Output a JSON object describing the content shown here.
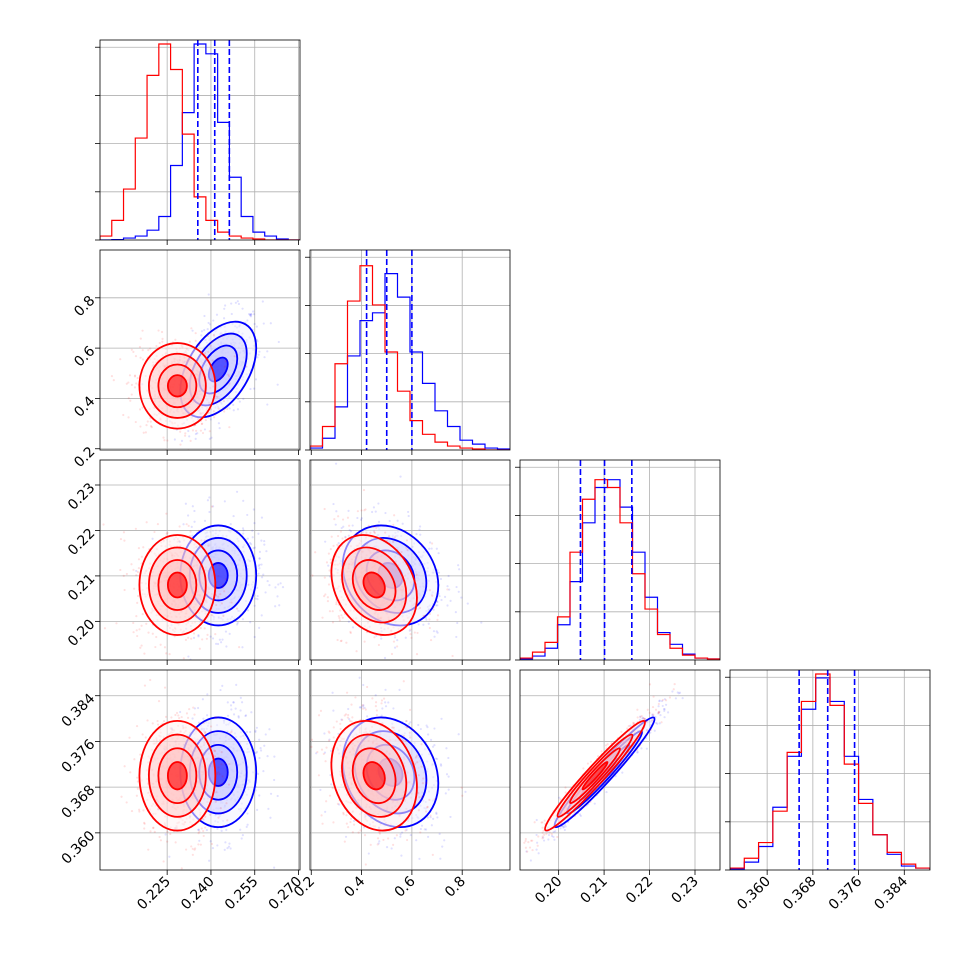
{
  "chart_data": {
    "type": "corner",
    "series": [
      {
        "name": "",
        "color": "#0000ff"
      },
      {
        "name": "",
        "color": "#ff0000"
      }
    ],
    "parameters": [
      {
        "label": "",
        "range": [
          0.202,
          0.2705
        ],
        "ticks": [
          "0.225",
          "0.240",
          "0.255",
          "0.270"
        ],
        "tick_values": [
          0.225,
          0.24,
          0.255,
          0.27
        ],
        "quantiles_blue": [
          0.2355,
          0.2413,
          0.2463
        ],
        "hist_blue": [
          0,
          0.002,
          0.01,
          0.02,
          0.05,
          0.12,
          0.38,
          0.65,
          1.0,
          0.95,
          0.6,
          0.32,
          0.12,
          0.04,
          0.02,
          0.005,
          0
        ],
        "hist_red": [
          0.02,
          0.1,
          0.26,
          0.52,
          0.84,
          1.0,
          0.87,
          0.54,
          0.22,
          0.1,
          0.04,
          0.02,
          0.01,
          0.005,
          0,
          0,
          0
        ]
      },
      {
        "label": "",
        "range": [
          0.195,
          0.99
        ],
        "ticks": [
          "0.2",
          "0.4",
          "0.6",
          "0.8"
        ],
        "tick_values": [
          0.2,
          0.4,
          0.6,
          0.8
        ],
        "quantiles_blue": [
          0.42,
          0.5,
          0.6
        ],
        "hist_blue": [
          0.01,
          0.06,
          0.22,
          0.48,
          0.66,
          0.7,
          0.9,
          0.78,
          0.5,
          0.34,
          0.2,
          0.12,
          0.05,
          0.03,
          0.01,
          0.005
        ],
        "hist_red": [
          0.02,
          0.12,
          0.44,
          0.76,
          0.94,
          0.74,
          0.5,
          0.3,
          0.15,
          0.08,
          0.04,
          0.02,
          0.01,
          0.005,
          0,
          0
        ]
      },
      {
        "label": "",
        "range": [
          0.1915,
          0.2355
        ],
        "ticks": [
          "0.20",
          "0.21",
          "0.22",
          "0.23"
        ],
        "tick_values": [
          0.2,
          0.21,
          0.22,
          0.23
        ],
        "quantiles_blue": [
          0.2048,
          0.2101,
          0.2161
        ],
        "hist_blue": [
          0.005,
          0.02,
          0.06,
          0.18,
          0.4,
          0.7,
          0.88,
          0.92,
          0.78,
          0.55,
          0.32,
          0.14,
          0.08,
          0.03,
          0.01,
          0.005
        ],
        "hist_red": [
          0.01,
          0.04,
          0.09,
          0.22,
          0.55,
          0.82,
          0.92,
          0.88,
          0.7,
          0.44,
          0.26,
          0.13,
          0.06,
          0.025,
          0.01,
          0.005
        ]
      },
      {
        "label": "",
        "range": [
          0.3535,
          0.3885
        ],
        "ticks": [
          "0.360",
          "0.368",
          "0.376",
          "0.384"
        ],
        "tick_values": [
          0.36,
          0.368,
          0.376,
          0.384
        ],
        "quantiles_blue": [
          0.3656,
          0.3706,
          0.3753
        ],
        "hist_blue": [
          0.005,
          0.04,
          0.12,
          0.32,
          0.58,
          0.82,
          0.98,
          0.86,
          0.58,
          0.36,
          0.18,
          0.08,
          0.02,
          0.01
        ],
        "hist_red": [
          0.01,
          0.06,
          0.14,
          0.3,
          0.6,
          0.86,
          1.0,
          0.84,
          0.54,
          0.34,
          0.18,
          0.09,
          0.03,
          0.01
        ]
      }
    ],
    "pair_centers": {
      "blue": [
        0.2425,
        0.515,
        0.2101,
        0.3706
      ],
      "red": [
        0.2285,
        0.45,
        0.208,
        0.37
      ]
    },
    "grid": true
  }
}
